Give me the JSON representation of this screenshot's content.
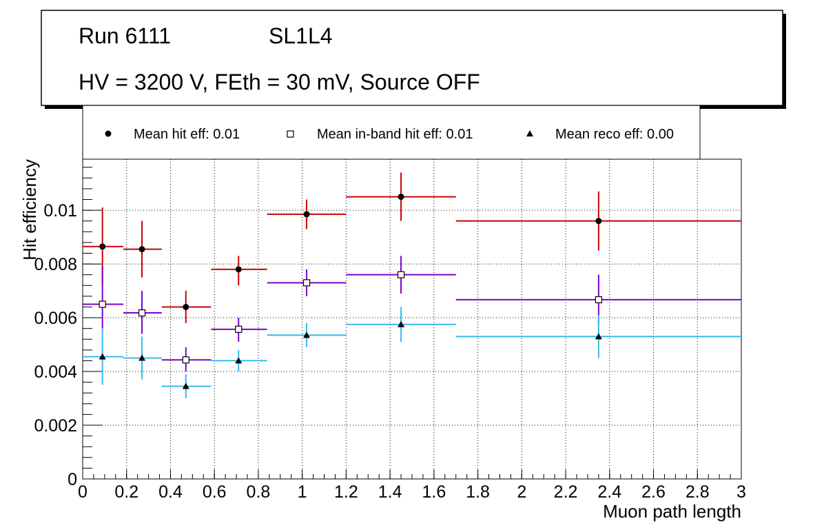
{
  "header": {
    "run": "Run 6111",
    "layer": "SL1L4",
    "conditions": "HV = 3200 V, FEth = 30 mV, Source OFF"
  },
  "legend": {
    "entries": [
      {
        "marker": "filled-circle",
        "label": "Mean hit  eff: 0.01"
      },
      {
        "marker": "open-square",
        "label": "Mean in-band hit eff: 0.01"
      },
      {
        "marker": "filled-triangle",
        "label": "Mean reco eff: 0.00"
      }
    ]
  },
  "chart_data": {
    "type": "scatter",
    "title": "Run 6111 SL1L4",
    "xlabel": "Muon path length",
    "ylabel": "Hit efficiency",
    "xlim": [
      0,
      3
    ],
    "ylim": [
      0,
      0.0119
    ],
    "grid": true,
    "x_ticks": [
      0,
      0.2,
      0.4,
      0.6,
      0.8,
      1,
      1.2,
      1.4,
      1.6,
      1.8,
      2,
      2.2,
      2.4,
      2.6,
      2.8,
      3
    ],
    "x_tick_labels": [
      "0",
      "0.2",
      "0.4",
      "0.6",
      "0.8",
      "1",
      "1.2",
      "1.4",
      "1.6",
      "1.8",
      "2",
      "2.2",
      "2.4",
      "2.6",
      "2.8",
      "3"
    ],
    "y_ticks": [
      0,
      0.002,
      0.004,
      0.006,
      0.008,
      0.01
    ],
    "y_tick_labels": [
      "0",
      "0.002",
      "0.004",
      "0.006",
      "0.008",
      "0.01"
    ],
    "series": [
      {
        "name": "Mean hit  eff: 0.01",
        "color": "#cc0000",
        "marker": "filled-circle",
        "points": [
          {
            "x": 0.09,
            "xlo": 0.0,
            "xhi": 0.185,
            "y": 0.00865,
            "ylo": 0.0072,
            "yhi": 0.0101
          },
          {
            "x": 0.27,
            "xlo": 0.185,
            "xhi": 0.36,
            "y": 0.00855,
            "ylo": 0.0075,
            "yhi": 0.0096
          },
          {
            "x": 0.47,
            "xlo": 0.36,
            "xhi": 0.585,
            "y": 0.0064,
            "ylo": 0.0058,
            "yhi": 0.007
          },
          {
            "x": 0.71,
            "xlo": 0.585,
            "xhi": 0.84,
            "y": 0.0078,
            "ylo": 0.0072,
            "yhi": 0.0083
          },
          {
            "x": 1.02,
            "xlo": 0.84,
            "xhi": 1.2,
            "y": 0.00985,
            "ylo": 0.0093,
            "yhi": 0.0104
          },
          {
            "x": 1.45,
            "xlo": 1.2,
            "xhi": 1.7,
            "y": 0.0105,
            "ylo": 0.0096,
            "yhi": 0.0114
          },
          {
            "x": 2.35,
            "xlo": 1.7,
            "xhi": 3.0,
            "y": 0.0096,
            "ylo": 0.0085,
            "yhi": 0.0107
          }
        ]
      },
      {
        "name": "Mean in-band hit eff: 0.01",
        "color": "#7b00cc",
        "marker": "open-square",
        "points": [
          {
            "x": 0.09,
            "xlo": 0.0,
            "xhi": 0.185,
            "y": 0.0065,
            "ylo": 0.0056,
            "yhi": 0.0079
          },
          {
            "x": 0.27,
            "xlo": 0.185,
            "xhi": 0.36,
            "y": 0.00618,
            "ylo": 0.0054,
            "yhi": 0.007
          },
          {
            "x": 0.47,
            "xlo": 0.36,
            "xhi": 0.585,
            "y": 0.00443,
            "ylo": 0.004,
            "yhi": 0.0049
          },
          {
            "x": 0.71,
            "xlo": 0.585,
            "xhi": 0.84,
            "y": 0.00557,
            "ylo": 0.0051,
            "yhi": 0.006
          },
          {
            "x": 1.02,
            "xlo": 0.84,
            "xhi": 1.2,
            "y": 0.0073,
            "ylo": 0.0068,
            "yhi": 0.0078
          },
          {
            "x": 1.45,
            "xlo": 1.2,
            "xhi": 1.7,
            "y": 0.0076,
            "ylo": 0.0069,
            "yhi": 0.0083
          },
          {
            "x": 2.35,
            "xlo": 1.7,
            "xhi": 3.0,
            "y": 0.00667,
            "ylo": 0.0057,
            "yhi": 0.0076
          }
        ]
      },
      {
        "name": "Mean reco eff: 0.00",
        "color": "#33bbee",
        "marker": "filled-triangle",
        "points": [
          {
            "x": 0.09,
            "xlo": 0.0,
            "xhi": 0.185,
            "y": 0.00455,
            "ylo": 0.0035,
            "yhi": 0.0056
          },
          {
            "x": 0.27,
            "xlo": 0.185,
            "xhi": 0.36,
            "y": 0.0045,
            "ylo": 0.0037,
            "yhi": 0.0053
          },
          {
            "x": 0.47,
            "xlo": 0.36,
            "xhi": 0.585,
            "y": 0.00345,
            "ylo": 0.003,
            "yhi": 0.0039
          },
          {
            "x": 0.71,
            "xlo": 0.585,
            "xhi": 0.84,
            "y": 0.0044,
            "ylo": 0.004,
            "yhi": 0.0048
          },
          {
            "x": 1.02,
            "xlo": 0.84,
            "xhi": 1.2,
            "y": 0.00535,
            "ylo": 0.0049,
            "yhi": 0.0058
          },
          {
            "x": 1.45,
            "xlo": 1.2,
            "xhi": 1.7,
            "y": 0.00575,
            "ylo": 0.0051,
            "yhi": 0.0064
          },
          {
            "x": 2.35,
            "xlo": 1.7,
            "xhi": 3.0,
            "y": 0.0053,
            "ylo": 0.0045,
            "yhi": 0.0061
          }
        ]
      }
    ]
  }
}
